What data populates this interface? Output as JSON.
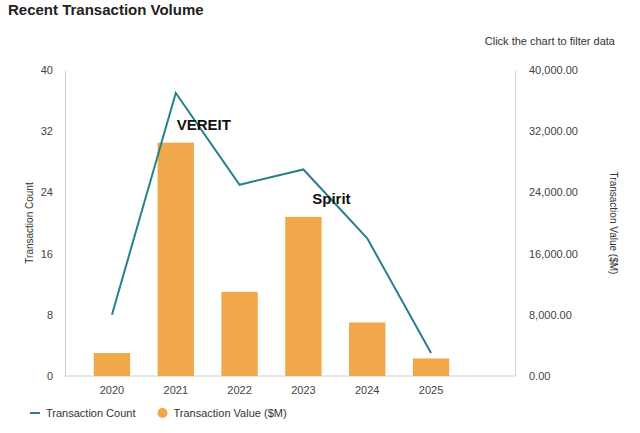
{
  "chart_data": {
    "type": "combo",
    "title": "Recent Transaction Volume",
    "subtitle": "Click the chart to filter data",
    "categories": [
      "2020",
      "2021",
      "2022",
      "2023",
      "2024",
      "2025"
    ],
    "series": [
      {
        "name": "Transaction Count",
        "type": "line",
        "color": "#2a7f8f",
        "values": [
          8,
          37,
          25,
          27,
          18,
          3
        ]
      },
      {
        "name": "Transaction Value ($M)",
        "type": "bar",
        "color": "#f0a84a",
        "axis": "y2",
        "values": [
          3000,
          30500,
          11000,
          20800,
          7000,
          2300
        ]
      }
    ],
    "y_label": "Transaction Count",
    "y2_label": "Transaction Value ($M)",
    "ylim": [
      0,
      40
    ],
    "yticks": [
      0,
      8,
      16,
      24,
      32,
      40
    ],
    "y2lim": [
      0,
      40000
    ],
    "y2ticks": [
      {
        "value": 0,
        "label": "0.00"
      },
      {
        "value": 8000,
        "label": "8,000.00"
      },
      {
        "value": 16000,
        "label": "16,000.00"
      },
      {
        "value": 24000,
        "label": "24,000.00"
      },
      {
        "value": 32000,
        "label": "32,000.00"
      },
      {
        "value": 40000,
        "label": "40,000.00"
      }
    ],
    "annotations": [
      {
        "text": "VEREIT",
        "category": "2021"
      },
      {
        "text": "Spirit",
        "category": "2023"
      }
    ],
    "grid": false,
    "legend": "bottom"
  }
}
